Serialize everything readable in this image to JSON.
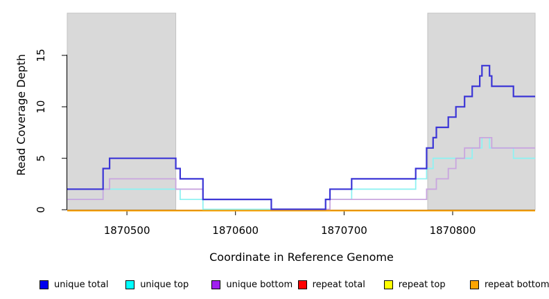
{
  "chart_data": {
    "type": "line",
    "subtype": "step-coverage",
    "title": "",
    "xlabel": "Coordinate in Reference Genome",
    "ylabel": "Read Coverage Depth",
    "xlim": [
      1870445,
      1870876
    ],
    "ylim": [
      0,
      19.1
    ],
    "x_ticks": [
      1870500,
      1870600,
      1870700,
      1870800
    ],
    "x_tick_labels": [
      "1870500",
      "1870600",
      "1870700",
      "1870800"
    ],
    "y_ticks": [
      0,
      5,
      10,
      15
    ],
    "y_tick_labels": [
      "0",
      "5",
      "10",
      "15"
    ],
    "grid": false,
    "plot_background": "#ffffff",
    "shaded_region_color": "#d9d9d9",
    "shaded_regions": [
      {
        "x_start": 1870445,
        "x_end": 1870545
      },
      {
        "x_start": 1870777,
        "x_end": 1870876
      }
    ],
    "legend_position": "bottom",
    "legend": [
      {
        "label": "unique total",
        "color": "#0000EE"
      },
      {
        "label": "unique top",
        "color": "#00FFFF"
      },
      {
        "label": "unique bottom",
        "color": "#A020F0"
      },
      {
        "label": "repeat total",
        "color": "#FF0000"
      },
      {
        "label": "repeat top",
        "color": "#FFFF00"
      },
      {
        "label": "repeat bottom",
        "color": "#FFA500"
      }
    ],
    "series": [
      {
        "name": "unique total",
        "line_color": "#3B35D6",
        "points": [
          [
            1870445,
            2
          ],
          [
            1870478,
            4
          ],
          [
            1870484,
            5
          ],
          [
            1870545,
            4
          ],
          [
            1870549,
            3
          ],
          [
            1870570,
            1
          ],
          [
            1870633,
            0
          ],
          [
            1870683,
            1
          ],
          [
            1870687,
            2
          ],
          [
            1870707,
            3
          ],
          [
            1870766,
            4
          ],
          [
            1870776,
            6
          ],
          [
            1870782,
            7
          ],
          [
            1870785,
            8
          ],
          [
            1870796,
            9
          ],
          [
            1870803,
            10
          ],
          [
            1870811,
            11
          ],
          [
            1870818,
            12
          ],
          [
            1870825,
            13
          ],
          [
            1870827,
            14
          ],
          [
            1870834,
            13
          ],
          [
            1870836,
            12
          ],
          [
            1870856,
            11
          ]
        ]
      },
      {
        "name": "unique top",
        "line_color": "#8FF2F2",
        "points": [
          [
            1870445,
            1
          ],
          [
            1870478,
            2
          ],
          [
            1870549,
            1
          ],
          [
            1870570,
            0
          ],
          [
            1870683,
            1
          ],
          [
            1870707,
            2
          ],
          [
            1870766,
            3
          ],
          [
            1870776,
            4
          ],
          [
            1870782,
            5
          ],
          [
            1870818,
            6
          ],
          [
            1870827,
            7
          ],
          [
            1870834,
            6
          ],
          [
            1870856,
            5
          ]
        ]
      },
      {
        "name": "unique bottom",
        "line_color": "#C9A5DF",
        "points": [
          [
            1870445,
            1
          ],
          [
            1870478,
            2
          ],
          [
            1870484,
            3
          ],
          [
            1870545,
            2
          ],
          [
            1870570,
            1
          ],
          [
            1870633,
            0
          ],
          [
            1870687,
            1
          ],
          [
            1870776,
            2
          ],
          [
            1870785,
            3
          ],
          [
            1870796,
            4
          ],
          [
            1870803,
            5
          ],
          [
            1870811,
            6
          ],
          [
            1870825,
            7
          ],
          [
            1870836,
            6
          ]
        ]
      },
      {
        "name": "repeat total",
        "line_color": "#FF0000",
        "points": [
          [
            1870445,
            0
          ]
        ]
      },
      {
        "name": "repeat top",
        "line_color": "#FFFF00",
        "points": [
          [
            1870445,
            0
          ]
        ]
      },
      {
        "name": "repeat bottom",
        "line_color": "#FFA500",
        "points": [
          [
            1870445,
            0
          ]
        ]
      }
    ]
  }
}
